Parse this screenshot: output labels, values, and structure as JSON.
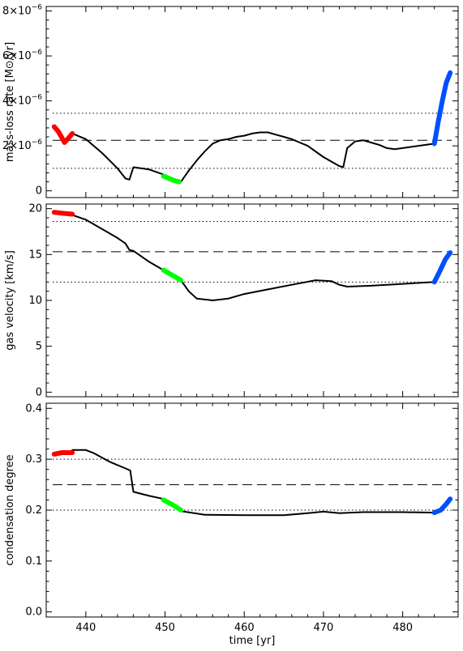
{
  "figure": {
    "xlabel": "time [yr]",
    "x_ticks": [
      "440",
      "450",
      "460",
      "470",
      "480"
    ],
    "xlim": [
      435,
      487
    ]
  },
  "chart_data": [
    {
      "type": "line",
      "ylabel": "mass-loss rate [M⊙/yr]",
      "ylim": [
        -3e-07,
        8.2e-06
      ],
      "y_ticks": [
        0,
        2e-06,
        4e-06,
        6e-06,
        8e-06
      ],
      "y_tick_labels": [
        {
          "base": "0",
          "exp": ""
        },
        {
          "base": "2×10",
          "exp": "−6"
        },
        {
          "base": "4×10",
          "exp": "−6"
        },
        {
          "base": "6×10",
          "exp": "−6"
        },
        {
          "base": "8×10",
          "exp": "−6"
        }
      ],
      "hlines": [
        {
          "value": 3.45e-06,
          "style": "dotted"
        },
        {
          "value": 2.25e-06,
          "style": "dashed"
        },
        {
          "value": 1e-06,
          "style": "dotted"
        }
      ],
      "series": [
        {
          "color": "#000000",
          "x": [
            438.3,
            440,
            442,
            444,
            445,
            445.5,
            446,
            448,
            450,
            451,
            452,
            453,
            454,
            455,
            456,
            457,
            458,
            459,
            460,
            461,
            462,
            463,
            464,
            465,
            466,
            467,
            468,
            470,
            472,
            472.5,
            473,
            474,
            475,
            476,
            477,
            478,
            479,
            480,
            481,
            482,
            483,
            484
          ],
          "y": [
            2.55e-06,
            2.3e-06,
            1.7e-06,
            1e-06,
            5.5e-07,
            5e-07,
            1.05e-06,
            9.5e-07,
            7e-07,
            5.5e-07,
            4e-07,
            9e-07,
            1.35e-06,
            1.75e-06,
            2.1e-06,
            2.25e-06,
            2.3e-06,
            2.4e-06,
            2.45e-06,
            2.55e-06,
            2.6e-06,
            2.6e-06,
            2.5e-06,
            2.4e-06,
            2.3e-06,
            2.15e-06,
            2e-06,
            1.5e-06,
            1.1e-06,
            1.05e-06,
            1.9e-06,
            2.2e-06,
            2.25e-06,
            2.15e-06,
            2.05e-06,
            1.9e-06,
            1.85e-06,
            1.9e-06,
            1.95e-06,
            2e-06,
            2.05e-06,
            2.1e-06
          ]
        },
        {
          "color": "#ff0000",
          "x": [
            436,
            436.5,
            437,
            437.3,
            437.7,
            438.3
          ],
          "y": [
            2.85e-06,
            2.65e-06,
            2.35e-06,
            2.15e-06,
            2.3e-06,
            2.55e-06
          ]
        },
        {
          "color": "#00ff00",
          "x": [
            449.8,
            450.5,
            451.2,
            451.8
          ],
          "y": [
            6.5e-07,
            5.5e-07,
            4.5e-07,
            4e-07
          ]
        },
        {
          "color": "#0050ff",
          "x": [
            484,
            484.5,
            485,
            485.5,
            486
          ],
          "y": [
            2.1e-06,
            3.1e-06,
            4e-06,
            4.8e-06,
            5.25e-06
          ]
        }
      ]
    },
    {
      "type": "line",
      "ylabel": "gas velocity [km/s]",
      "ylim": [
        -0.5,
        20.5
      ],
      "y_ticks": [
        0,
        5,
        10,
        15,
        20
      ],
      "y_tick_labels": [
        {
          "base": "0",
          "exp": ""
        },
        {
          "base": "5",
          "exp": ""
        },
        {
          "base": "10",
          "exp": ""
        },
        {
          "base": "15",
          "exp": ""
        },
        {
          "base": "20",
          "exp": ""
        }
      ],
      "hlines": [
        {
          "value": 18.6,
          "style": "dotted"
        },
        {
          "value": 15.3,
          "style": "dashed"
        },
        {
          "value": 12.0,
          "style": "dotted"
        }
      ],
      "series": [
        {
          "color": "#000000",
          "x": [
            438.3,
            440,
            442,
            444,
            445,
            445.5,
            446,
            448,
            449.8,
            452,
            453,
            454,
            456,
            458,
            460,
            463,
            466,
            469,
            471,
            472,
            473,
            476,
            480,
            484
          ],
          "y": [
            19.3,
            18.8,
            17.8,
            16.8,
            16.2,
            15.5,
            15.4,
            14.2,
            13.3,
            12.2,
            11.0,
            10.2,
            10.0,
            10.2,
            10.7,
            11.2,
            11.7,
            12.2,
            12.1,
            11.7,
            11.5,
            11.6,
            11.8,
            12.0
          ]
        },
        {
          "color": "#ff0000",
          "x": [
            436,
            437,
            438.3
          ],
          "y": [
            19.6,
            19.5,
            19.4
          ]
        },
        {
          "color": "#00ff00",
          "x": [
            449.8,
            451,
            452
          ],
          "y": [
            13.3,
            12.7,
            12.2
          ]
        },
        {
          "color": "#0050ff",
          "x": [
            484,
            484.7,
            485.4,
            486
          ],
          "y": [
            12.0,
            13.2,
            14.5,
            15.2
          ]
        }
      ]
    },
    {
      "type": "line",
      "ylabel": "condensation degree",
      "ylim": [
        -0.01,
        0.41
      ],
      "y_ticks": [
        0.0,
        0.1,
        0.2,
        0.3,
        0.4
      ],
      "y_tick_labels": [
        {
          "base": "0.0",
          "exp": ""
        },
        {
          "base": "0.1",
          "exp": ""
        },
        {
          "base": "0.2",
          "exp": ""
        },
        {
          "base": "0.3",
          "exp": ""
        },
        {
          "base": "0.4",
          "exp": ""
        }
      ],
      "hlines": [
        {
          "value": 0.3,
          "style": "dotted"
        },
        {
          "value": 0.25,
          "style": "dashed"
        },
        {
          "value": 0.2,
          "style": "dotted"
        }
      ],
      "series": [
        {
          "color": "#000000",
          "x": [
            438.3,
            440,
            441,
            443,
            445,
            445.6,
            446,
            448,
            449.8,
            452,
            455,
            460,
            465,
            468,
            470,
            472,
            475,
            480,
            484
          ],
          "y": [
            0.318,
            0.318,
            0.312,
            0.295,
            0.282,
            0.278,
            0.236,
            0.228,
            0.222,
            0.198,
            0.191,
            0.19,
            0.19,
            0.194,
            0.197,
            0.194,
            0.196,
            0.196,
            0.195
          ]
        },
        {
          "color": "#ff0000",
          "x": [
            436,
            437,
            438.3
          ],
          "y": [
            0.31,
            0.313,
            0.313
          ]
        },
        {
          "color": "#00ff00",
          "x": [
            449.8,
            451,
            452
          ],
          "y": [
            0.22,
            0.21,
            0.2
          ]
        },
        {
          "color": "#0050ff",
          "x": [
            484,
            484.8,
            485.5,
            486
          ],
          "y": [
            0.195,
            0.2,
            0.212,
            0.222
          ]
        }
      ]
    }
  ]
}
